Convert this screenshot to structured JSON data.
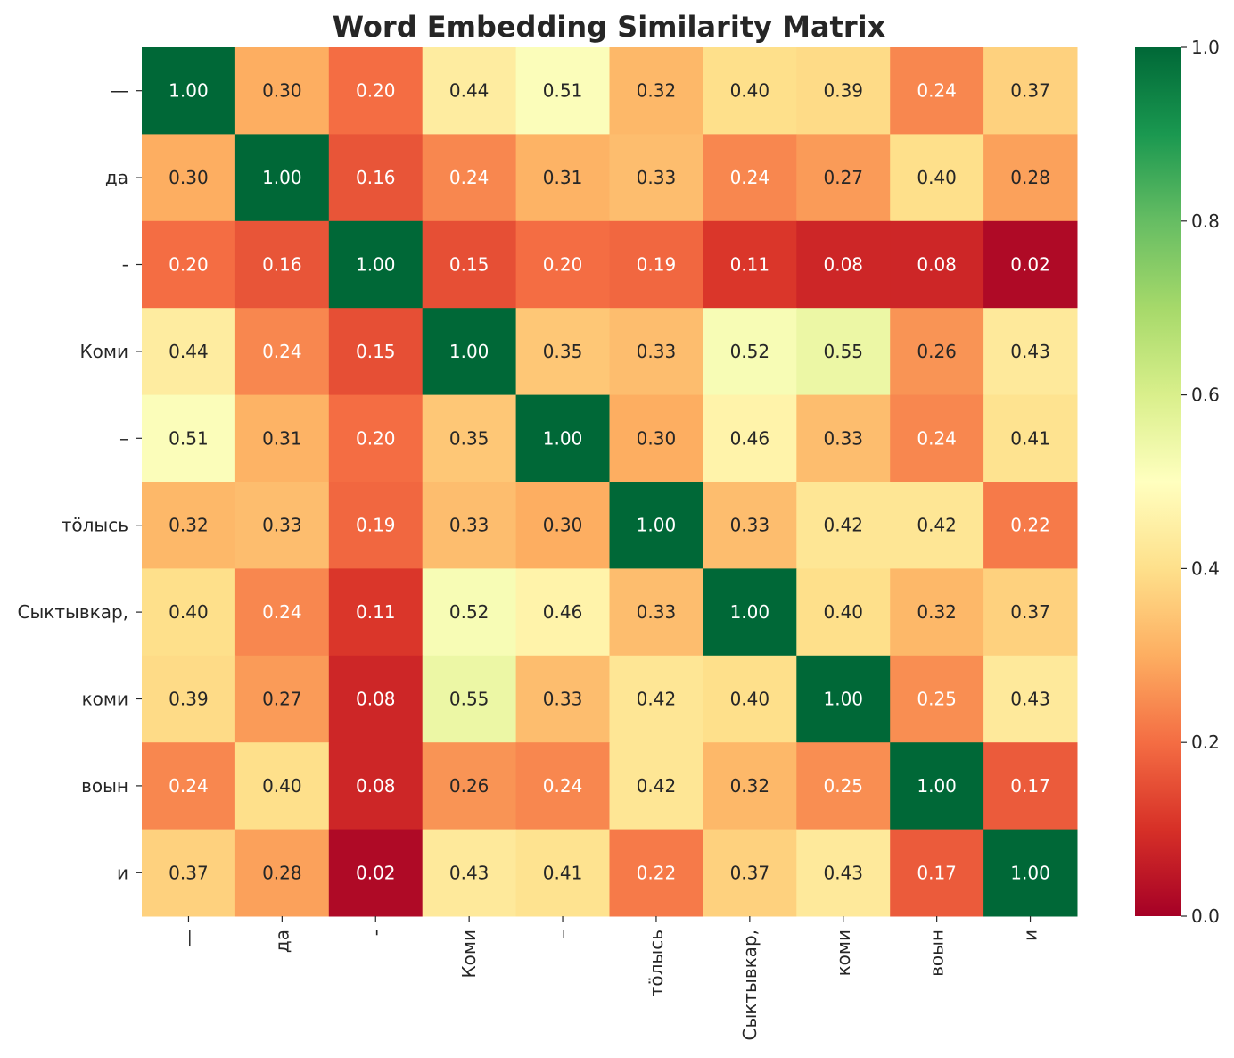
{
  "chart_data": {
    "type": "heatmap",
    "title": "Word Embedding Similarity Matrix",
    "row_labels": [
      "—",
      "да",
      "-",
      "Коми",
      "–",
      "тӧлысь",
      "Сыктывкар,",
      "коми",
      "воын",
      "и"
    ],
    "col_labels": [
      "—",
      "да",
      "-",
      "Коми",
      "–",
      "тӧлысь",
      "Сыктывкар,",
      "коми",
      "воын",
      "и"
    ],
    "values": [
      [
        1.0,
        0.3,
        0.2,
        0.44,
        0.51,
        0.32,
        0.4,
        0.39,
        0.24,
        0.37
      ],
      [
        0.3,
        1.0,
        0.16,
        0.24,
        0.31,
        0.33,
        0.24,
        0.27,
        0.4,
        0.28
      ],
      [
        0.2,
        0.16,
        1.0,
        0.15,
        0.2,
        0.19,
        0.11,
        0.08,
        0.08,
        0.02
      ],
      [
        0.44,
        0.24,
        0.15,
        1.0,
        0.35,
        0.33,
        0.52,
        0.55,
        0.26,
        0.43
      ],
      [
        0.51,
        0.31,
        0.2,
        0.35,
        1.0,
        0.3,
        0.46,
        0.33,
        0.24,
        0.41
      ],
      [
        0.32,
        0.33,
        0.19,
        0.33,
        0.3,
        1.0,
        0.33,
        0.42,
        0.42,
        0.22
      ],
      [
        0.4,
        0.24,
        0.11,
        0.52,
        0.46,
        0.33,
        1.0,
        0.4,
        0.32,
        0.37
      ],
      [
        0.39,
        0.27,
        0.08,
        0.55,
        0.33,
        0.42,
        0.4,
        1.0,
        0.25,
        0.43
      ],
      [
        0.24,
        0.4,
        0.08,
        0.26,
        0.24,
        0.42,
        0.32,
        0.25,
        1.0,
        0.17
      ],
      [
        0.37,
        0.28,
        0.02,
        0.43,
        0.41,
        0.22,
        0.37,
        0.43,
        0.17,
        1.0
      ]
    ],
    "colormap": "RdYlGn",
    "vmin": 0.0,
    "vmax": 1.0,
    "colorbar_ticks": [
      "0.0",
      "0.2",
      "0.4",
      "0.6",
      "0.8",
      "1.0"
    ],
    "annotation_format": "2 decimals"
  }
}
